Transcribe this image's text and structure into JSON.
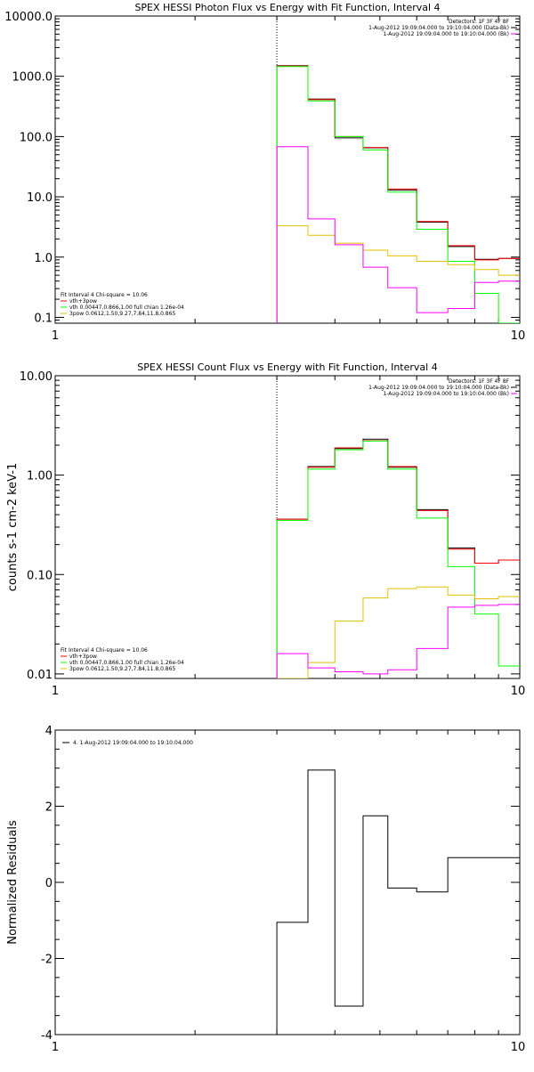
{
  "chart_data": [
    {
      "type": "line",
      "title": "SPEX HESSI Photon Flux vs Energy with Fit Function, Interval 4",
      "xscale": "log",
      "yscale": "log",
      "xlim": [
        1,
        10
      ],
      "ylim": [
        0.08,
        10000
      ],
      "x_ticklabels": [
        "1",
        "10"
      ],
      "y_ticks": [
        0.1,
        1,
        10,
        100,
        1000,
        10000
      ],
      "y_ticklabels": [
        "0.1",
        "1.0",
        "10.0",
        "100.0",
        "1000.0",
        "10000.0"
      ],
      "vline_x": 3.0,
      "legend_topright": [
        {
          "text": "Detectors: 1F 3F 4F 8F",
          "color": "#000000"
        },
        {
          "text": "1-Aug-2012 19:09:04.000 to 19:10:04.000 (Data-Bk)",
          "color": "#000000"
        },
        {
          "text": "1-Aug-2012 19:09:04.000 to 19:10:04.000 (Bk)",
          "color": "#ff00ff"
        }
      ],
      "legend_bottomleft": [
        {
          "text": "Fit Interval 4   Chi-square = 10.06",
          "color": "#000000"
        },
        {
          "text": "vth+3pow",
          "color": "#ff0000"
        },
        {
          "text": "vth 0.00447,0.866,1.00  full chian 1.26e-04",
          "color": "#00ff00"
        },
        {
          "text": "3pow 0.0612,1.50,9.27,7.84,11.8,0.865",
          "color": "#e0c000"
        }
      ],
      "edges": [
        3.0,
        3.5,
        4.0,
        4.6,
        5.2,
        6.0,
        7.0,
        8.0,
        9.0,
        10.0
      ],
      "series": [
        {
          "name": "Data-Bk",
          "color": "#000000",
          "values": [
            1500,
            420,
            95,
            65,
            13,
            3.8,
            1.5,
            0.92,
            0.95
          ]
        },
        {
          "name": "vth+3pow",
          "color": "#ff0000",
          "values": [
            1480,
            410,
            100,
            66,
            13.5,
            3.9,
            1.55,
            0.9,
            0.95
          ]
        },
        {
          "name": "vth",
          "color": "#00ff00",
          "values": [
            1450,
            390,
            100,
            60,
            12,
            2.9,
            0.85,
            0.25,
            0.08
          ]
        },
        {
          "name": "3pow",
          "color": "#e0c000",
          "values": [
            3.3,
            2.3,
            1.7,
            1.3,
            1.05,
            0.85,
            0.75,
            0.62,
            0.5
          ]
        },
        {
          "name": "Bk",
          "color": "#ff00ff",
          "values": [
            68,
            4.3,
            1.6,
            0.68,
            0.31,
            0.12,
            0.14,
            0.38,
            0.4
          ]
        }
      ]
    },
    {
      "type": "line",
      "title": "SPEX HESSI Count Flux vs Energy with Fit Function, Interval 4",
      "ylabel": "counts s-1 cm-2 keV-1",
      "xscale": "log",
      "yscale": "log",
      "xlim": [
        1,
        10
      ],
      "ylim": [
        0.009,
        10
      ],
      "x_ticklabels": [
        "1",
        "10"
      ],
      "y_ticks": [
        0.01,
        0.1,
        1,
        10
      ],
      "y_ticklabels": [
        "0.01",
        "0.10",
        "1.00",
        "10.00"
      ],
      "vline_x": 3.0,
      "legend_topright": [
        {
          "text": "Detectors: 1F 3F 4F 8F",
          "color": "#000000"
        },
        {
          "text": "1-Aug-2012 19:09:04.000 to 19:10:04.000 (Data-Bk)",
          "color": "#000000"
        },
        {
          "text": "1-Aug-2012 19:09:04.000 to 19:10:04.000 (Bk)",
          "color": "#ff00ff"
        }
      ],
      "legend_bottomleft": [
        {
          "text": "Fit Interval 4   Chi-square = 10.06",
          "color": "#000000"
        },
        {
          "text": "vth+3pow",
          "color": "#ff0000"
        },
        {
          "text": "vth 0.00447,0.866,1.00  full chian 1.26e-04",
          "color": "#00ff00"
        },
        {
          "text": "3pow 0.0612,1.50,9.27,7.84,11.8,0.865",
          "color": "#e0c000"
        }
      ],
      "edges": [
        3.0,
        3.5,
        4.0,
        4.6,
        5.2,
        6.0,
        7.0,
        8.0,
        9.0,
        10.0
      ],
      "series": [
        {
          "name": "Data-Bk",
          "color": "#000000",
          "values": [
            0.36,
            1.22,
            1.85,
            2.3,
            1.2,
            0.45,
            0.185,
            0.13,
            0.14
          ]
        },
        {
          "name": "vth+3pow",
          "color": "#ff0000",
          "values": [
            0.36,
            1.2,
            1.88,
            2.22,
            1.22,
            0.44,
            0.18,
            0.13,
            0.14
          ]
        },
        {
          "name": "vth",
          "color": "#00ff00",
          "values": [
            0.35,
            1.15,
            1.8,
            2.2,
            1.15,
            0.37,
            0.12,
            0.04,
            0.012
          ]
        },
        {
          "name": "3pow",
          "color": "#e0c000",
          "values": [
            0.008,
            0.013,
            0.034,
            0.058,
            0.072,
            0.075,
            0.062,
            0.057,
            0.06
          ]
        },
        {
          "name": "Bk",
          "color": "#ff00ff",
          "values": [
            0.016,
            0.0115,
            0.0105,
            0.01,
            0.011,
            0.018,
            0.047,
            0.049,
            0.05
          ]
        }
      ]
    },
    {
      "type": "line",
      "ylabel": "Normalized Residuals",
      "xscale": "log",
      "xlim": [
        1,
        10
      ],
      "ylim": [
        -4,
        4
      ],
      "x_ticklabels": [
        "1",
        "10"
      ],
      "y_ticks": [
        -4,
        -2,
        0,
        2,
        4
      ],
      "y_ticklabels": [
        "-4",
        "-2",
        "0",
        "2",
        "4"
      ],
      "legend": [
        {
          "text": "4. 1-Aug-2012 19:09:04.000 to 19:10:04.000",
          "color": "#000000"
        }
      ],
      "edges": [
        3.0,
        3.5,
        4.0,
        4.6,
        5.2,
        6.0,
        7.0,
        8.0,
        9.0,
        10.0
      ],
      "series": [
        {
          "name": "4. 1-Aug-2012 19:09:04.000 to 19:10:04.000",
          "color": "#000000",
          "values": [
            -1.05,
            2.95,
            -3.25,
            1.75,
            -0.15,
            -0.25,
            0.65,
            0.65,
            0.65
          ]
        }
      ]
    }
  ]
}
